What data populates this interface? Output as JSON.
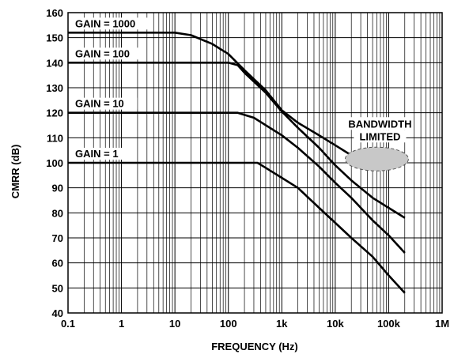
{
  "chart_data": {
    "type": "line",
    "xlabel": "FREQUENCY (Hz)",
    "ylabel": "CMRR (dB)",
    "x_scale": "log",
    "xlim": [
      0.1,
      1000000
    ],
    "ylim": [
      40,
      160
    ],
    "x_ticks": [
      {
        "value": 0.1,
        "label": "0.1"
      },
      {
        "value": 1,
        "label": "1"
      },
      {
        "value": 10,
        "label": "10"
      },
      {
        "value": 100,
        "label": "100"
      },
      {
        "value": 1000,
        "label": "1k"
      },
      {
        "value": 10000,
        "label": "10k"
      },
      {
        "value": 100000,
        "label": "100k"
      },
      {
        "value": 1000000,
        "label": "1M"
      }
    ],
    "y_ticks": [
      40,
      50,
      60,
      70,
      80,
      90,
      100,
      110,
      120,
      130,
      140,
      150,
      160
    ],
    "grid": true,
    "series": [
      {
        "name": "GAIN = 1000",
        "points": [
          [
            0.1,
            152
          ],
          [
            10,
            152
          ],
          [
            20,
            151
          ],
          [
            50,
            147.5
          ],
          [
            100,
            143.5
          ],
          [
            200,
            137
          ],
          [
            500,
            129
          ],
          [
            1000,
            121
          ],
          [
            2000,
            116
          ],
          [
            5000,
            111
          ],
          [
            10000,
            107
          ],
          [
            20000,
            103
          ],
          [
            50000,
            101.5
          ],
          [
            100000,
            101.2
          ],
          [
            200000,
            101
          ]
        ]
      },
      {
        "name": "GAIN = 100",
        "points": [
          [
            0.1,
            140
          ],
          [
            100,
            140
          ],
          [
            150,
            139
          ],
          [
            200,
            136
          ],
          [
            500,
            128
          ],
          [
            1000,
            120.5
          ],
          [
            2000,
            114
          ],
          [
            5000,
            106
          ],
          [
            10000,
            99
          ],
          [
            20000,
            93
          ],
          [
            50000,
            86
          ],
          [
            100000,
            82
          ],
          [
            200000,
            78
          ]
        ]
      },
      {
        "name": "GAIN = 10",
        "points": [
          [
            0.1,
            120
          ],
          [
            150,
            120
          ],
          [
            300,
            118
          ],
          [
            1000,
            111
          ],
          [
            2000,
            106
          ],
          [
            5000,
            98.5
          ],
          [
            10000,
            92
          ],
          [
            20000,
            86
          ],
          [
            50000,
            77
          ],
          [
            100000,
            71
          ],
          [
            200000,
            64
          ]
        ]
      },
      {
        "name": "GAIN = 1",
        "points": [
          [
            0.1,
            100
          ],
          [
            350,
            100
          ],
          [
            500,
            98
          ],
          [
            1000,
            94
          ],
          [
            2000,
            90
          ],
          [
            5000,
            82
          ],
          [
            10000,
            76
          ],
          [
            20000,
            70
          ],
          [
            50000,
            62.5
          ],
          [
            100000,
            55
          ],
          [
            200000,
            48
          ]
        ]
      }
    ],
    "annotations": [
      {
        "text": [
          "BANDWIDTH",
          "LIMITED"
        ],
        "x": 60000,
        "y": 101.5
      }
    ]
  }
}
